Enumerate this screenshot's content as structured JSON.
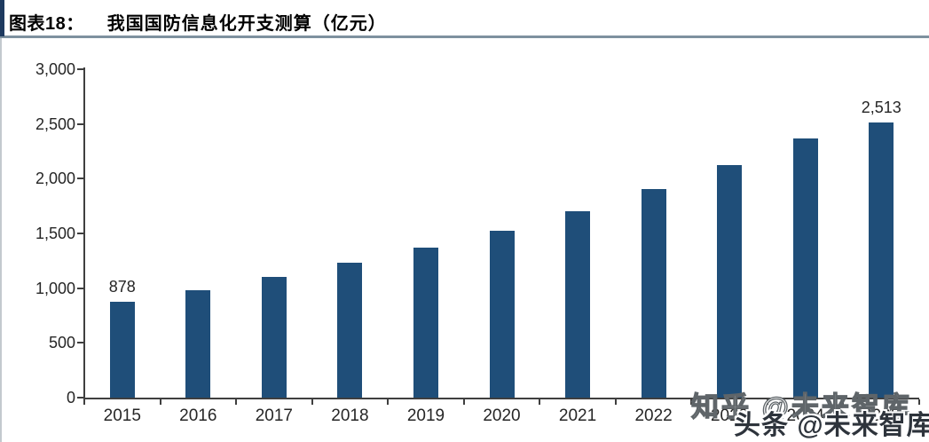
{
  "header": {
    "figure_label": "图表18：",
    "title": "我国国防信息化开支测算（亿元）"
  },
  "colors": {
    "bar": "#1F4E79",
    "header_rule": "#7E919F",
    "header_accent": "#1E3A5F",
    "axis": "#3F3F3F",
    "text": "#262626"
  },
  "chart_data": {
    "type": "bar",
    "title": "我国国防信息化开支测算（亿元）",
    "categories": [
      "2015",
      "2016",
      "2017",
      "2018",
      "2019",
      "2020",
      "2021",
      "2022",
      "2023",
      "2024",
      "2025"
    ],
    "values": [
      878,
      980,
      1100,
      1230,
      1368,
      1522,
      1702,
      1903,
      2122,
      2366,
      2513
    ],
    "bar_labels": [
      "878",
      "",
      "",
      "",
      "",
      "",
      "",
      "",
      "",
      "",
      "2,513"
    ],
    "ylabel": "",
    "xlabel": "",
    "ylim": [
      0,
      3000
    ],
    "y_tick_values": [
      0,
      500,
      1000,
      1500,
      2000,
      2500,
      3000
    ],
    "y_tick_labels": [
      "0",
      "500",
      "1,000",
      "1,500",
      "2,000",
      "2,500",
      "3,000"
    ],
    "grid": false,
    "legend": false,
    "bar_color": "#1F4E79"
  },
  "watermarks": {
    "zhihu": "知乎 @未来智库",
    "toutiao": "头条 @未来智库"
  }
}
